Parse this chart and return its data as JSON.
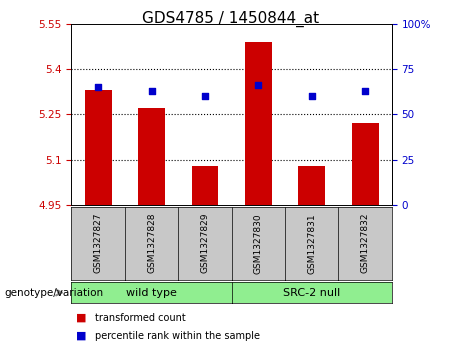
{
  "title": "GDS4785 / 1450844_at",
  "samples": [
    "GSM1327827",
    "GSM1327828",
    "GSM1327829",
    "GSM1327830",
    "GSM1327831",
    "GSM1327832"
  ],
  "red_values": [
    5.33,
    5.27,
    5.08,
    5.49,
    5.08,
    5.22
  ],
  "blue_values": [
    65,
    63,
    60,
    66,
    60,
    63
  ],
  "bar_bottom": 4.95,
  "ylim_left": [
    4.95,
    5.55
  ],
  "ylim_right": [
    0,
    100
  ],
  "yticks_left": [
    4.95,
    5.1,
    5.25,
    5.4,
    5.55
  ],
  "ytick_labels_left": [
    "4.95",
    "5.1",
    "5.25",
    "5.4",
    "5.55"
  ],
  "yticks_right": [
    0,
    25,
    50,
    75,
    100
  ],
  "ytick_labels_right": [
    "0",
    "25",
    "50",
    "75",
    "100%"
  ],
  "groups": [
    {
      "label": "wild type",
      "color": "#90EE90"
    },
    {
      "label": "SRC-2 null",
      "color": "#90EE90"
    }
  ],
  "genotype_label": "genotype/variation",
  "bar_color": "#CC0000",
  "dot_color": "#0000CC",
  "bg_color": "#C8C8C8",
  "plot_bg": "#FFFFFF",
  "legend_items": [
    {
      "color": "#CC0000",
      "label": "transformed count"
    },
    {
      "color": "#0000CC",
      "label": "percentile rank within the sample"
    }
  ],
  "title_fontsize": 11,
  "tick_fontsize": 7.5,
  "sample_fontsize": 6.5,
  "group_fontsize": 8,
  "legend_fontsize": 7,
  "genotype_fontsize": 7.5
}
